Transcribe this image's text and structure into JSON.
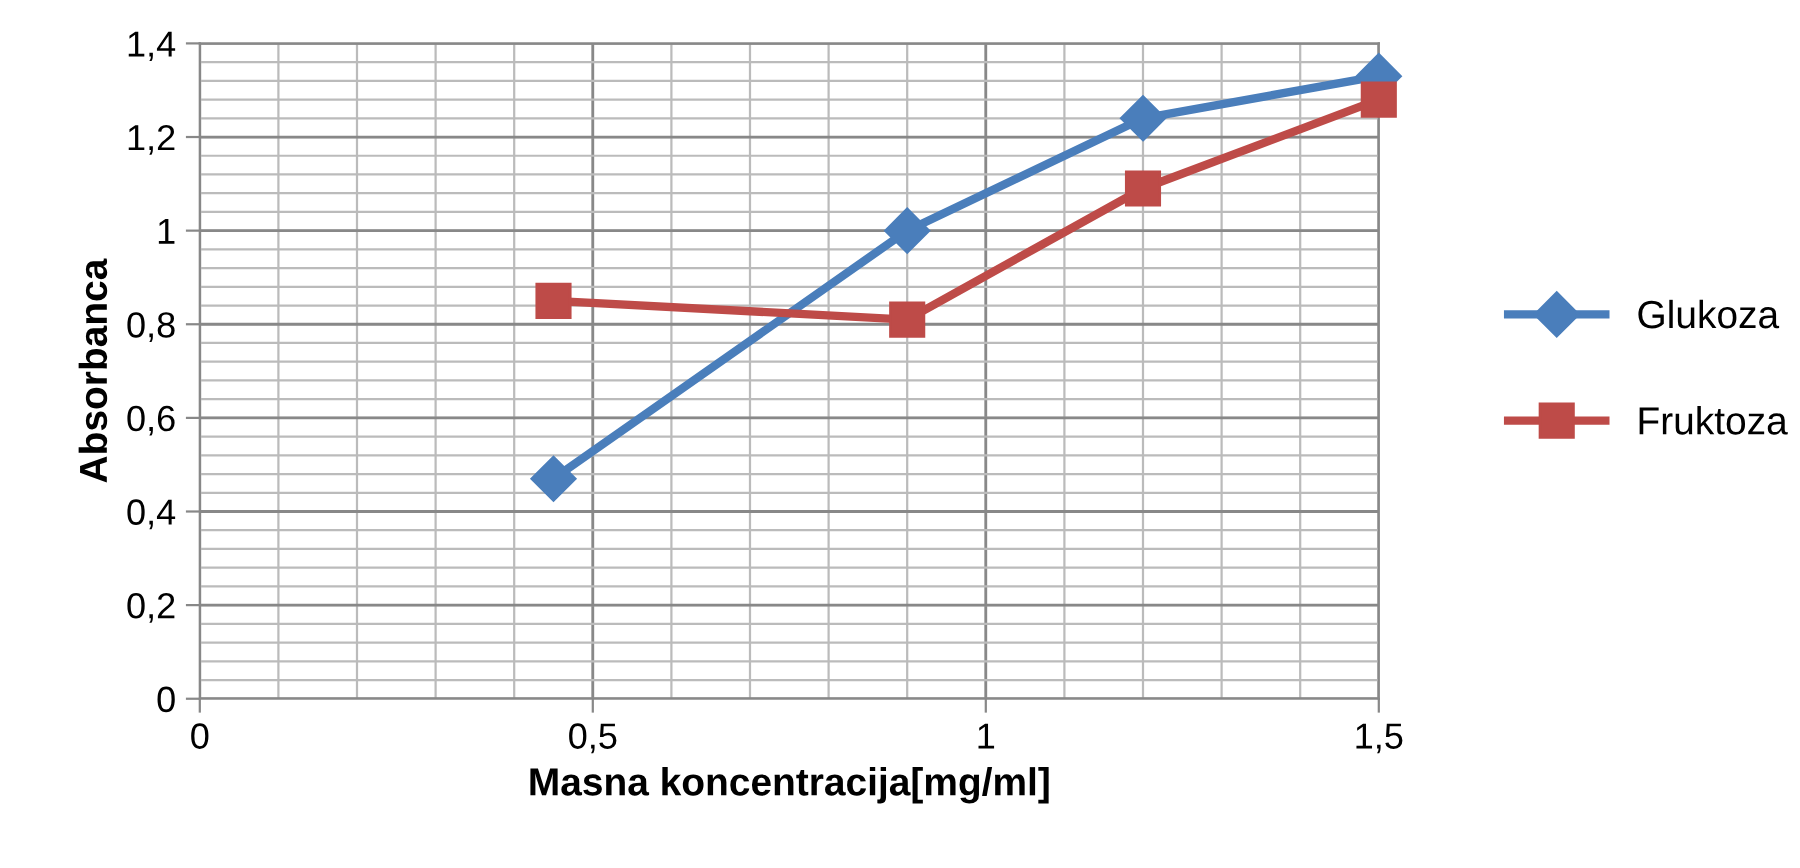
{
  "chart_data": {
    "type": "line",
    "xlabel": "Masna koncentracija[mg/ml]",
    "ylabel": "Absorbanca",
    "series": [
      {
        "name": "Glukoza",
        "color": "#4a7ebb",
        "marker": "diamond",
        "x": [
          0.45,
          0.9,
          1.2,
          1.5
        ],
        "values": [
          0.47,
          1.0,
          1.24,
          1.33
        ]
      },
      {
        "name": "Fruktoza",
        "color": "#be4b48",
        "marker": "square",
        "x": [
          0.45,
          0.9,
          1.2,
          1.5
        ],
        "values": [
          0.85,
          0.81,
          1.09,
          1.28
        ]
      }
    ],
    "xlim": [
      0,
      1.5
    ],
    "xticks": [
      0,
      {
        "value": 0.5,
        "label": "0,5"
      },
      1,
      {
        "value": 1.5,
        "label": "1,5"
      }
    ],
    "ylim": [
      0,
      1.4
    ],
    "yticks": [
      0,
      {
        "value": 0.2,
        "label": "0,2"
      },
      {
        "value": 0.4,
        "label": "0,4"
      },
      {
        "value": 0.6,
        "label": "0,6"
      },
      {
        "value": 0.8,
        "label": "0,8"
      },
      1,
      {
        "value": 1.2,
        "label": "1,2"
      },
      {
        "value": 1.4,
        "label": "1,4"
      }
    ],
    "grid": true,
    "legend": "right",
    "line_style": "solid"
  }
}
